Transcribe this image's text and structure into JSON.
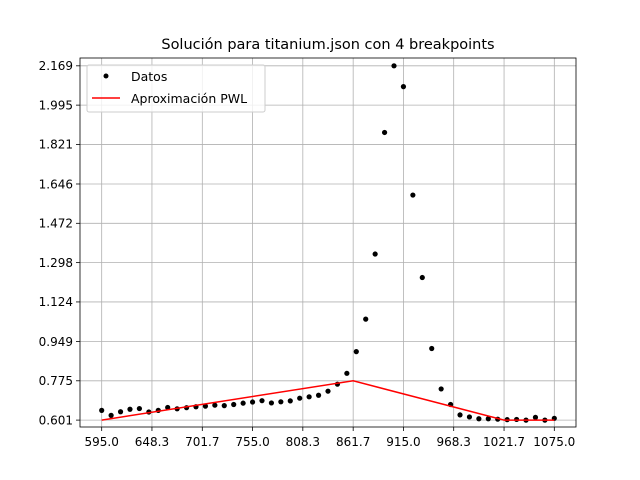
{
  "chart_data": {
    "type": "scatter",
    "title": "Solución para titanium.json con 4 breakpoints",
    "xlabel": "",
    "ylabel": "",
    "xlim": [
      572,
      1098
    ],
    "ylim": [
      0.5705,
      2.2036
    ],
    "grid": true,
    "legend_position": "top-left",
    "xticks": [
      595.0,
      648.3,
      701.7,
      755.0,
      808.3,
      861.7,
      915.0,
      968.3,
      1021.7,
      1075.0
    ],
    "xtick_labels": [
      "595.0",
      "648.3",
      "701.7",
      "755.0",
      "808.3",
      "861.7",
      "915.0",
      "968.3",
      "1021.7",
      "1075.0"
    ],
    "yticks": [
      0.601,
      0.775,
      0.949,
      1.124,
      1.298,
      1.472,
      1.646,
      1.821,
      1.995,
      2.169
    ],
    "ytick_labels": [
      "0.601",
      "0.775",
      "0.949",
      "1.124",
      "1.298",
      "1.472",
      "1.646",
      "1.821",
      "1.995",
      "2.169"
    ],
    "series": [
      {
        "name": "Datos",
        "kind": "scatter",
        "color": "#000000",
        "x": [
          595,
          605,
          615,
          625,
          635,
          645,
          655,
          665,
          675,
          685,
          695,
          705,
          715,
          725,
          735,
          745,
          755,
          765,
          775,
          785,
          795,
          805,
          815,
          825,
          835,
          845,
          855,
          865,
          875,
          885,
          895,
          905,
          915,
          925,
          935,
          945,
          955,
          965,
          975,
          985,
          995,
          1005,
          1015,
          1025,
          1035,
          1045,
          1055,
          1065,
          1075
        ],
        "y": [
          0.644,
          0.622,
          0.638,
          0.649,
          0.652,
          0.637,
          0.644,
          0.657,
          0.651,
          0.656,
          0.66,
          0.663,
          0.667,
          0.665,
          0.67,
          0.676,
          0.681,
          0.687,
          0.677,
          0.682,
          0.686,
          0.698,
          0.704,
          0.711,
          0.729,
          0.76,
          0.808,
          0.904,
          1.048,
          1.336,
          1.874,
          2.169,
          2.077,
          1.597,
          1.232,
          0.918,
          0.739,
          0.67,
          0.624,
          0.615,
          0.607,
          0.607,
          0.605,
          0.603,
          0.604,
          0.601,
          0.613,
          0.601,
          0.609
        ]
      },
      {
        "name": "Aproximación PWL",
        "kind": "line",
        "color": "#ff0000",
        "x": [
          595.0,
          861.7,
          1021.7,
          1075.0
        ],
        "y": [
          0.601,
          0.775,
          0.601,
          0.601
        ]
      }
    ]
  }
}
